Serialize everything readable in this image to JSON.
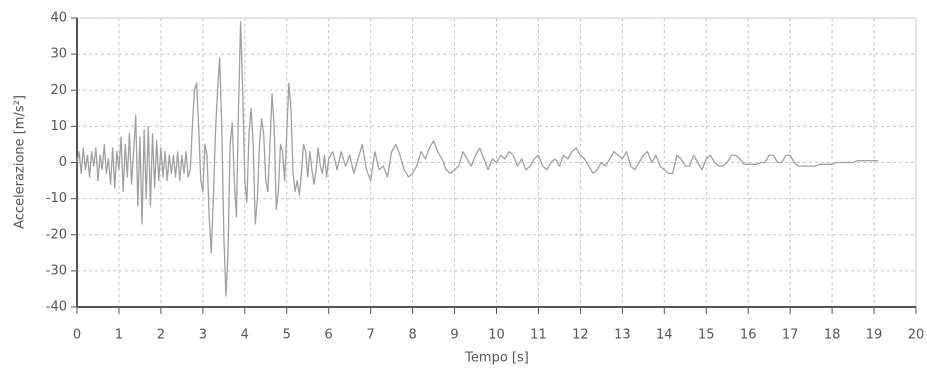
{
  "chart_data": {
    "type": "line",
    "xlabel": "Tempo [s]",
    "ylabel": "Accelerazione [m/s²]",
    "color": "#a0a0a0",
    "grid": true,
    "xlim": [
      0,
      20
    ],
    "ylim": [
      -40,
      40
    ],
    "xticks": [
      0,
      1,
      2,
      3,
      4,
      5,
      6,
      7,
      8,
      9,
      10,
      11,
      12,
      13,
      14,
      15,
      16,
      17,
      18,
      19,
      20
    ],
    "yticks": [
      -40,
      -30,
      -20,
      -10,
      0,
      10,
      20,
      30,
      40
    ],
    "x": [
      0,
      0.05,
      0.1,
      0.15,
      0.2,
      0.25,
      0.3,
      0.35,
      0.4,
      0.45,
      0.5,
      0.55,
      0.6,
      0.65,
      0.7,
      0.75,
      0.8,
      0.85,
      0.9,
      0.95,
      1,
      1.05,
      1.1,
      1.15,
      1.2,
      1.25,
      1.3,
      1.35,
      1.4,
      1.45,
      1.5,
      1.55,
      1.6,
      1.65,
      1.7,
      1.75,
      1.8,
      1.85,
      1.9,
      1.95,
      2,
      2.05,
      2.1,
      2.15,
      2.2,
      2.25,
      2.3,
      2.35,
      2.4,
      2.45,
      2.5,
      2.55,
      2.6,
      2.65,
      2.7,
      2.75,
      2.8,
      2.85,
      2.9,
      2.95,
      3,
      3.05,
      3.1,
      3.15,
      3.2,
      3.25,
      3.3,
      3.35,
      3.4,
      3.45,
      3.5,
      3.55,
      3.6,
      3.65,
      3.7,
      3.75,
      3.8,
      3.85,
      3.9,
      3.95,
      4,
      4.05,
      4.1,
      4.15,
      4.2,
      4.25,
      4.3,
      4.35,
      4.4,
      4.45,
      4.5,
      4.55,
      4.6,
      4.65,
      4.7,
      4.75,
      4.8,
      4.85,
      4.9,
      4.95,
      5,
      5.05,
      5.1,
      5.15,
      5.2,
      5.25,
      5.3,
      5.35,
      5.4,
      5.45,
      5.5,
      5.55,
      5.6,
      5.65,
      5.7,
      5.75,
      5.8,
      5.85,
      5.9,
      5.95,
      6,
      6.1,
      6.2,
      6.3,
      6.4,
      6.5,
      6.6,
      6.7,
      6.8,
      6.9,
      7,
      7.1,
      7.2,
      7.3,
      7.4,
      7.5,
      7.6,
      7.7,
      7.8,
      7.9,
      8,
      8.1,
      8.2,
      8.3,
      8.4,
      8.5,
      8.6,
      8.7,
      8.8,
      8.9,
      9,
      9.1,
      9.2,
      9.3,
      9.4,
      9.5,
      9.6,
      9.7,
      9.8,
      9.9,
      10,
      10.1,
      10.2,
      10.3,
      10.4,
      10.5,
      10.6,
      10.7,
      10.8,
      10.9,
      11,
      11.1,
      11.2,
      11.3,
      11.4,
      11.5,
      11.6,
      11.7,
      11.8,
      11.9,
      12,
      12.1,
      12.2,
      12.3,
      12.4,
      12.5,
      12.6,
      12.7,
      12.8,
      12.9,
      13,
      13.1,
      13.2,
      13.3,
      13.4,
      13.5,
      13.6,
      13.7,
      13.8,
      13.9,
      14,
      14.1,
      14.2,
      14.3,
      14.4,
      14.5,
      14.6,
      14.7,
      14.8,
      14.9,
      15,
      15.1,
      15.2,
      15.3,
      15.4,
      15.5,
      15.6,
      15.7,
      15.8,
      15.9,
      16,
      16.1,
      16.2,
      16.3,
      16.4,
      16.5,
      16.6,
      16.7,
      16.8,
      16.9,
      17,
      17.1,
      17.2,
      17.3,
      17.4,
      17.5,
      17.6,
      17.7,
      17.8,
      17.9,
      18,
      18.1,
      18.2,
      18.3,
      18.4,
      18.5,
      18.6,
      18.7,
      18.8,
      18.9,
      19,
      19.1
    ],
    "values": [
      0,
      3,
      -3,
      4,
      -2,
      2,
      -4,
      3,
      -1,
      4,
      -5,
      2,
      -2,
      5,
      -3,
      1,
      -6,
      4,
      -7,
      3,
      -2,
      7,
      -8,
      5,
      -4,
      8,
      -6,
      3,
      13,
      -12,
      7,
      -17,
      9,
      -10,
      10,
      -12,
      8,
      -7,
      6,
      -5,
      4,
      -4,
      3,
      -5,
      2,
      -3,
      2,
      -4,
      3,
      -5,
      2,
      -3,
      3,
      -4,
      -2,
      10,
      20,
      22,
      10,
      -5,
      -8,
      5,
      2,
      -15,
      -25,
      -10,
      8,
      20,
      29,
      10,
      -20,
      -37,
      -25,
      5,
      11,
      -5,
      -15,
      15,
      39,
      20,
      -5,
      -11,
      8,
      15,
      5,
      -17,
      -10,
      5,
      12,
      8,
      -5,
      -8,
      5,
      19,
      10,
      -13,
      -8,
      5,
      3,
      -5,
      8,
      22,
      15,
      -3,
      -8,
      -5,
      -9,
      -3,
      5,
      3,
      -4,
      3,
      -2,
      -6,
      -2,
      4,
      -1,
      -3,
      2,
      -4,
      1,
      3,
      -2,
      3,
      -1,
      2,
      -3,
      1,
      5,
      -2,
      -5,
      3,
      -2,
      -1,
      -4,
      3,
      5,
      2,
      -2,
      -4,
      -3,
      -1,
      3,
      1,
      4,
      6,
      3,
      1,
      -2,
      -3,
      -2,
      -1,
      3,
      1,
      -1,
      2,
      4,
      1,
      -2,
      1,
      0,
      2,
      1,
      3,
      2,
      -1,
      1,
      -2,
      -1,
      1,
      2,
      -1,
      -2,
      0,
      1,
      -1,
      2,
      1,
      3,
      4,
      2,
      1,
      -1,
      -3,
      -2,
      0,
      -1,
      1,
      3,
      2,
      1,
      3,
      -1,
      -2,
      0,
      2,
      3,
      0,
      2,
      -1,
      -2,
      -3,
      -3,
      2,
      1,
      -1,
      -1,
      2,
      0,
      -2,
      1,
      2,
      0,
      -1,
      -1,
      0,
      2,
      2,
      1,
      -0.5,
      -0.5,
      -0.5,
      -0.5,
      0,
      0,
      2,
      2,
      0,
      0,
      2,
      2,
      0,
      -1,
      -1,
      -1,
      -1,
      -1,
      -0.5,
      -0.5,
      -0.5,
      -0.5,
      0,
      0,
      0,
      0,
      0,
      0.5,
      0.5,
      0.5,
      0.5,
      0.5,
      0.5
    ]
  }
}
